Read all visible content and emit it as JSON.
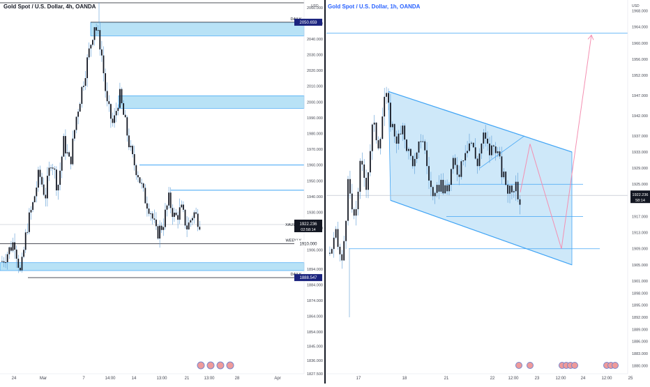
{
  "colors": {
    "up": "#131722",
    "down": "#131722",
    "wick": "#5b9bd5",
    "zone_fill": "#b8e2f6",
    "zone_stroke": "#2196f3",
    "level_line": "#131722",
    "label_bg": "#1a237e",
    "channel_fill": "#bde0f7",
    "channel_stroke": "#42a5f5",
    "projection": "#f48fb1",
    "price_line": "#b0b7c3",
    "axis_text": "#434651",
    "divider": "#131722"
  },
  "charts": {
    "left": {
      "title": "Gold Spot / U.S. Dollar, 4h, OANDA",
      "currency": "USD",
      "labels": {
        "daily_top": "DAILY",
        "weekly": "WEEKLY",
        "daily_bottom": "DAILY",
        "price_tag": "2050.659",
        "weekly_tag": "1910.000",
        "daily_tag": "1888.547",
        "symbol": "XAUUSD",
        "current": "1922.236",
        "countdown": "02:58:14"
      },
      "x_ticks": [
        "24",
        "Mar",
        "7",
        "14:00",
        "14",
        "13:00",
        "21",
        "13:00",
        "28",
        "Apr"
      ],
      "y_ticks": [
        "2060.000",
        "2050.000",
        "2040.000",
        "2030.000",
        "2020.000",
        "2010.000",
        "2000.000",
        "1990.000",
        "1980.000",
        "1970.000",
        "1960.000",
        "1950.000",
        "1940.000",
        "1930.000",
        "1920.000",
        "1906.000",
        "1894.000",
        "1884.000",
        "1874.000",
        "1864.000",
        "1854.000",
        "1845.000",
        "1836.000",
        "1827.500"
      ]
    },
    "right": {
      "title": "Gold Spot / U.S. Dollar, 1h, OANDA",
      "currency": "USD",
      "labels": {
        "current": "1922.236",
        "countdown": "58:14"
      },
      "x_ticks": [
        "17",
        "18",
        "21",
        "22",
        "12:00",
        "23",
        "12:00",
        "24",
        "12:00",
        "25"
      ],
      "y_ticks": [
        "1968.000",
        "1964.000",
        "1960.000",
        "1956.000",
        "1952.000",
        "1947.000",
        "1942.000",
        "1937.000",
        "1933.000",
        "1929.000",
        "1925.000",
        "1921.000",
        "1917.000",
        "1913.000",
        "1909.000",
        "1905.000",
        "1901.000",
        "1898.000",
        "1895.000",
        "1892.000",
        "1889.000",
        "1886.000",
        "1883.000",
        "1880.000"
      ]
    }
  },
  "chart_data": [
    {
      "type": "candlestick",
      "title": "Gold Spot / U.S. Dollar, 4h, OANDA",
      "ylim": [
        1827.5,
        2063
      ],
      "price_levels": [
        {
          "label": "DAILY",
          "value": 2050.659
        },
        {
          "label": "WEEKLY",
          "value": 1910.0
        },
        {
          "label": "DAILY",
          "value": 1888.547
        }
      ],
      "supply_demand_zones": [
        [
          2042,
          2050.659
        ],
        [
          1996,
          2004
        ],
        [
          1893,
          1898
        ]
      ],
      "horizontal_lines": [
        1960,
        1944
      ],
      "current_price": 1922.236,
      "close_path": [
        1899,
        1905,
        1912,
        1890,
        1920,
        1935,
        1955,
        1940,
        1965,
        1945,
        1975,
        1960,
        1990,
        2010,
        2030,
        2050,
        2035,
        1998,
        1985,
        2005,
        1985,
        1965,
        1955,
        1940,
        1932,
        1916,
        1922,
        1938,
        1926,
        1932,
        1920,
        1930,
        1924
      ]
    },
    {
      "type": "candlestick",
      "title": "Gold Spot / U.S. Dollar, 1h, OANDA",
      "ylim": [
        1878,
        1970
      ],
      "channel": {
        "upper": [
          [
            1948,
            1947
          ],
          [
            1933,
            1931
          ]
        ],
        "lower": [
          [
            1922,
            1921
          ],
          [
            1904,
            1905
          ]
        ]
      },
      "horizontal_lines": [
        1962.5,
        1925,
        1917,
        1909
      ],
      "current_price": 1922.236,
      "projection": [
        1923,
        1935,
        1909,
        1962
      ],
      "close_path": [
        1908,
        1912,
        1905,
        1925,
        1915,
        1930,
        1925,
        1940,
        1935,
        1948,
        1940,
        1936,
        1938,
        1932,
        1930,
        1938,
        1928,
        1920,
        1926,
        1922,
        1930,
        1928,
        1934,
        1936,
        1930,
        1937,
        1933,
        1935,
        1928,
        1924,
        1925,
        1921
      ]
    }
  ]
}
